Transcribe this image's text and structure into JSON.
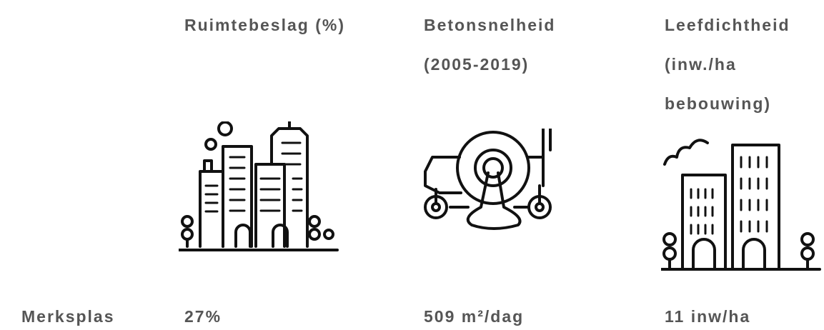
{
  "table": {
    "columns": [
      {
        "header": [
          "Ruimtebeslag (%)"
        ]
      },
      {
        "header": [
          "Betonsnelheid",
          "(2005-2019)"
        ]
      },
      {
        "header": [
          "Leefdichtheid",
          "(inw./ha",
          "bebouwing)"
        ]
      }
    ],
    "rows": [
      {
        "label": "Merksplas",
        "cells": [
          "27%",
          "509 m²/dag",
          "11 inw/ha"
        ]
      }
    ]
  }
}
